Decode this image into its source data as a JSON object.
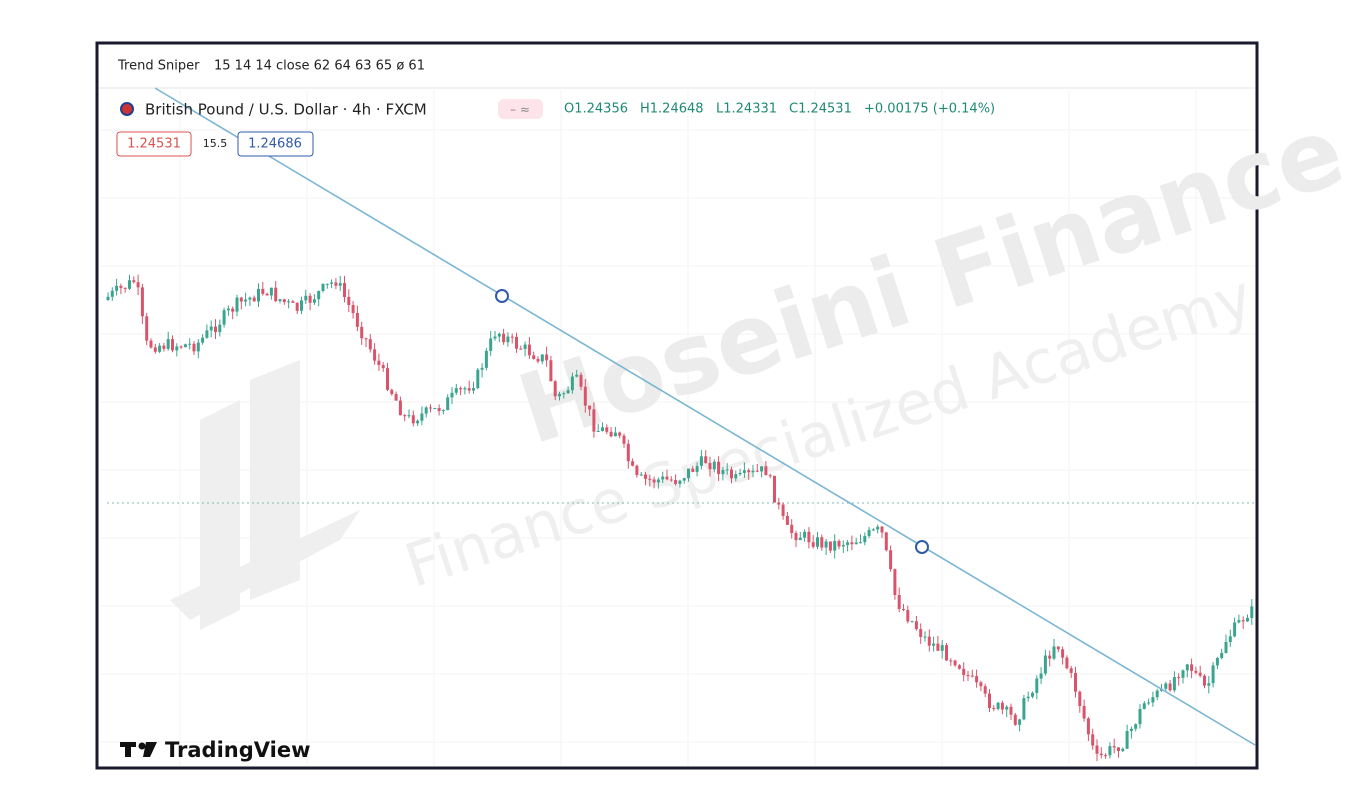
{
  "indicator": {
    "name": "Trend Sniper",
    "params": "15 14 14 close 62 64 63 65 ø 61"
  },
  "symbol": {
    "title": "British Pound / U.S. Dollar · 4h · FXCM",
    "open": "O1.24356",
    "high": "H1.24648",
    "low": "L1.24331",
    "close": "C1.24531",
    "change": "+0.00175 (+0.14%)"
  },
  "badges": {
    "bid": "1.24531",
    "spread": "15.5",
    "ask": "1.24686"
  },
  "watermark": {
    "brand": "Hoseini Finance",
    "tagline": "Finance Specialized Academy"
  },
  "logo": "TradingView"
}
